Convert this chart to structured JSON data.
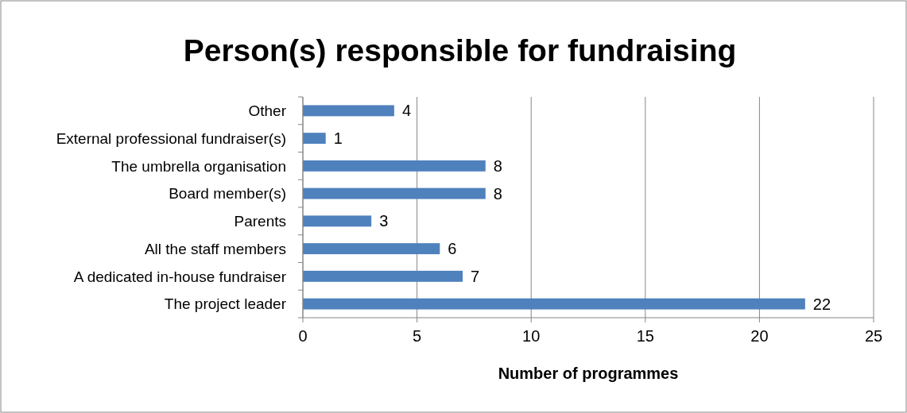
{
  "chart_data": {
    "type": "bar",
    "orientation": "horizontal",
    "title": "Person(s) responsible for fundraising",
    "xlabel": "Number of programmes",
    "categories": [
      "Other",
      "External professional fundraiser(s)",
      "The umbrella organisation",
      "Board member(s)",
      "Parents",
      "All the staff members",
      "A dedicated in-house fundraiser",
      "The project leader"
    ],
    "values": [
      4,
      1,
      8,
      8,
      3,
      6,
      7,
      22
    ],
    "color": "#4f81bd",
    "xlim": [
      0,
      25
    ],
    "xticks": [
      0,
      5,
      10,
      15,
      20,
      25
    ],
    "grid": "x",
    "data_labels": true
  }
}
